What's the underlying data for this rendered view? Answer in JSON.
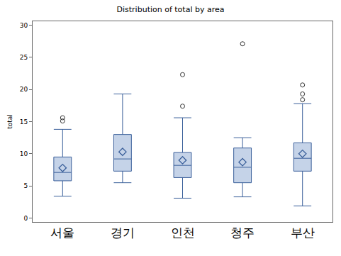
{
  "chart_data": {
    "type": "box",
    "title": "Distribution of total by area",
    "y_label": "total",
    "categories": [
      "서울",
      "경기",
      "인천",
      "청주",
      "부산"
    ],
    "q1": [
      5.8,
      7.3,
      6.3,
      5.5,
      7.3
    ],
    "median": [
      7.1,
      9.2,
      8.2,
      7.9,
      9.3
    ],
    "q3": [
      9.5,
      13.0,
      10.2,
      10.9,
      11.7
    ],
    "lower": [
      3.4,
      5.5,
      3.1,
      3.3,
      1.9
    ],
    "upper": [
      13.8,
      19.3,
      15.6,
      12.5,
      17.8
    ],
    "mean": [
      7.8,
      10.3,
      9.0,
      8.7,
      10.0
    ],
    "outliers": [
      [
        15.1,
        15.6
      ],
      [],
      [
        17.4,
        22.3
      ],
      [
        27.1
      ],
      [
        18.4,
        19.3,
        20.7
      ]
    ],
    "color": "#c5d3e8",
    "marker": "diamond",
    "ylim": [
      -0.6,
      30.6
    ],
    "yticks": [
      0,
      5,
      10,
      15,
      20,
      25,
      30
    ],
    "grid": false
  }
}
